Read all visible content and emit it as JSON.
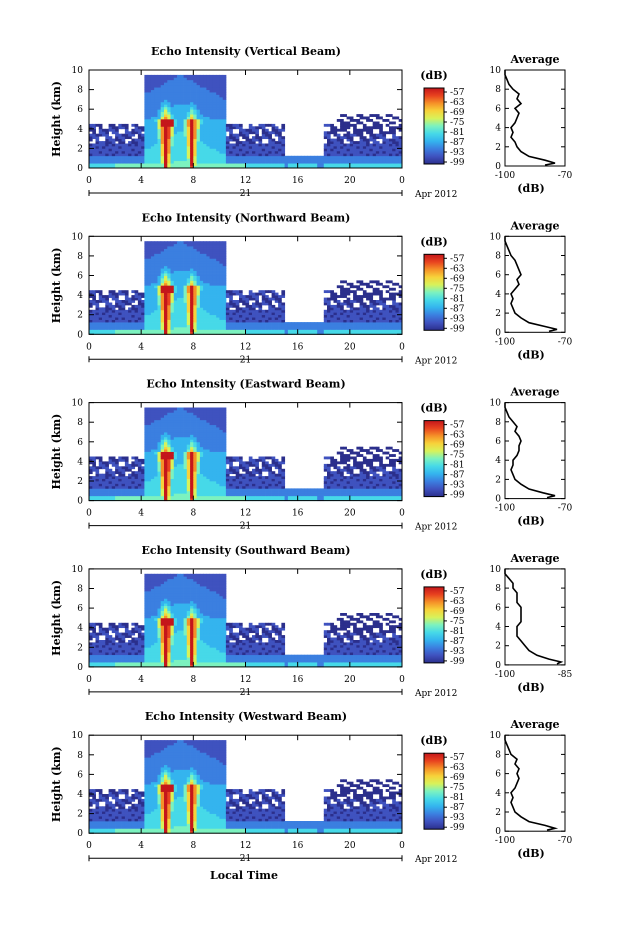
{
  "colors": {
    "scale": [
      "#2b2f8c",
      "#3f52bf",
      "#3b7fe0",
      "#34b4ee",
      "#46d9e8",
      "#7cf2bf",
      "#d8f25a",
      "#f7d23a",
      "#f59028",
      "#e8421f",
      "#c4161b"
    ]
  },
  "figure": {
    "xlabel": "Local Time",
    "ylabel": "Height (km)",
    "x_ticks": [
      "0",
      "4",
      "8",
      "12",
      "16",
      "20",
      "0"
    ],
    "y_ticks": [
      "0",
      "2",
      "4",
      "6",
      "8",
      "10"
    ],
    "day": "21",
    "month_label": "Apr 2012",
    "colorbar_unit": "(dB)",
    "colorbar_ticks": [
      "-57",
      "-63",
      "-69",
      "-75",
      "-81",
      "-87",
      "-93",
      "-99"
    ],
    "avg_title": "Average",
    "avg_xlabel": "(dB)"
  },
  "chart_data": [
    {
      "type": "heatmap",
      "title": "Echo Intensity (Vertical Beam)",
      "xlim": [
        0,
        24
      ],
      "ylim": [
        0,
        10
      ],
      "clim": [
        -99,
        -57
      ],
      "avg": {
        "type": "line",
        "xlim": [
          -100,
          -70
        ],
        "ylim": [
          0,
          10
        ],
        "x_ticks": [
          "-100",
          "-70"
        ],
        "profile": [
          [
            -80,
            0.1
          ],
          [
            -75,
            0.3
          ],
          [
            -80,
            0.6
          ],
          [
            -88,
            1.0
          ],
          [
            -92,
            1.5
          ],
          [
            -94,
            2.0
          ],
          [
            -95,
            2.5
          ],
          [
            -97,
            3.0
          ],
          [
            -96,
            3.5
          ],
          [
            -97,
            4.0
          ],
          [
            -95,
            4.5
          ],
          [
            -94,
            5.0
          ],
          [
            -93,
            5.5
          ],
          [
            -95,
            6.0
          ],
          [
            -92,
            6.5
          ],
          [
            -94,
            7.0
          ],
          [
            -93,
            7.5
          ],
          [
            -96,
            8.0
          ],
          [
            -98,
            8.5
          ],
          [
            -99,
            9.0
          ],
          [
            -100,
            9.5
          ],
          [
            -100,
            10
          ]
        ]
      }
    },
    {
      "type": "heatmap",
      "title": "Echo Intensity (Northward Beam)",
      "xlim": [
        0,
        24
      ],
      "ylim": [
        0,
        10
      ],
      "clim": [
        -99,
        -57
      ],
      "avg": {
        "type": "line",
        "xlim": [
          -100,
          -70
        ],
        "ylim": [
          0,
          10
        ],
        "x_ticks": [
          "-100",
          "-70"
        ],
        "profile": [
          [
            -78,
            0.1
          ],
          [
            -74,
            0.3
          ],
          [
            -80,
            0.6
          ],
          [
            -88,
            1.0
          ],
          [
            -92,
            1.5
          ],
          [
            -95,
            2.0
          ],
          [
            -96,
            2.5
          ],
          [
            -97,
            3.0
          ],
          [
            -96,
            3.5
          ],
          [
            -97,
            4.0
          ],
          [
            -95,
            4.5
          ],
          [
            -93,
            5.0
          ],
          [
            -94,
            5.5
          ],
          [
            -92,
            6.0
          ],
          [
            -93,
            6.5
          ],
          [
            -94,
            7.0
          ],
          [
            -95,
            7.5
          ],
          [
            -97,
            8.0
          ],
          [
            -98,
            8.5
          ],
          [
            -99,
            9.0
          ],
          [
            -100,
            9.5
          ],
          [
            -100,
            10
          ]
        ]
      }
    },
    {
      "type": "heatmap",
      "title": "Echo Intensity (Eastward Beam)",
      "xlim": [
        0,
        24
      ],
      "ylim": [
        0,
        10
      ],
      "clim": [
        -99,
        -57
      ],
      "avg": {
        "type": "line",
        "xlim": [
          -100,
          -70
        ],
        "ylim": [
          0,
          10
        ],
        "x_ticks": [
          "-100",
          "-70"
        ],
        "profile": [
          [
            -79,
            0.1
          ],
          [
            -75,
            0.3
          ],
          [
            -81,
            0.6
          ],
          [
            -88,
            1.0
          ],
          [
            -92,
            1.5
          ],
          [
            -95,
            2.0
          ],
          [
            -96,
            2.5
          ],
          [
            -97,
            3.0
          ],
          [
            -96,
            3.5
          ],
          [
            -96,
            4.0
          ],
          [
            -94,
            4.5
          ],
          [
            -93,
            5.0
          ],
          [
            -93,
            5.5
          ],
          [
            -92,
            6.0
          ],
          [
            -93,
            6.5
          ],
          [
            -95,
            7.0
          ],
          [
            -94,
            7.5
          ],
          [
            -96,
            8.0
          ],
          [
            -98,
            8.5
          ],
          [
            -99,
            9.0
          ],
          [
            -100,
            9.5
          ],
          [
            -100,
            10
          ]
        ]
      }
    },
    {
      "type": "heatmap",
      "title": "Echo Intensity (Southward Beam)",
      "xlim": [
        0,
        24
      ],
      "ylim": [
        0,
        10
      ],
      "clim": [
        -99,
        -57
      ],
      "avg": {
        "type": "line",
        "xlim": [
          -100,
          -85
        ],
        "ylim": [
          0,
          10
        ],
        "x_ticks": [
          "-100",
          "-85"
        ],
        "profile": [
          [
            -87,
            0.1
          ],
          [
            -86,
            0.3
          ],
          [
            -89,
            0.6
          ],
          [
            -92,
            1.0
          ],
          [
            -94,
            1.5
          ],
          [
            -95,
            2.0
          ],
          [
            -96,
            2.5
          ],
          [
            -97,
            3.0
          ],
          [
            -97,
            3.5
          ],
          [
            -97,
            4.0
          ],
          [
            -96,
            4.5
          ],
          [
            -96,
            5.0
          ],
          [
            -96,
            5.5
          ],
          [
            -96,
            6.0
          ],
          [
            -97,
            6.5
          ],
          [
            -97,
            7.0
          ],
          [
            -97,
            7.5
          ],
          [
            -98,
            8.0
          ],
          [
            -98,
            8.5
          ],
          [
            -99,
            9.0
          ],
          [
            -100,
            9.5
          ],
          [
            -100,
            10
          ]
        ]
      }
    },
    {
      "type": "heatmap",
      "title": "Echo Intensity (Westward Beam)",
      "xlim": [
        0,
        24
      ],
      "ylim": [
        0,
        10
      ],
      "clim": [
        -99,
        -57
      ],
      "avg": {
        "type": "line",
        "xlim": [
          -100,
          -70
        ],
        "ylim": [
          0,
          10
        ],
        "x_ticks": [
          "-100",
          "-70"
        ],
        "profile": [
          [
            -79,
            0.1
          ],
          [
            -75,
            0.3
          ],
          [
            -80,
            0.6
          ],
          [
            -88,
            1.0
          ],
          [
            -92,
            1.5
          ],
          [
            -95,
            2.0
          ],
          [
            -96,
            2.5
          ],
          [
            -97,
            3.0
          ],
          [
            -96,
            3.5
          ],
          [
            -97,
            4.0
          ],
          [
            -95,
            4.5
          ],
          [
            -94,
            5.0
          ],
          [
            -93,
            5.5
          ],
          [
            -94,
            6.0
          ],
          [
            -93,
            6.5
          ],
          [
            -95,
            7.0
          ],
          [
            -94,
            7.5
          ],
          [
            -97,
            8.0
          ],
          [
            -98,
            8.5
          ],
          [
            -99,
            9.0
          ],
          [
            -100,
            9.5
          ],
          [
            -100,
            10
          ]
        ]
      }
    }
  ]
}
